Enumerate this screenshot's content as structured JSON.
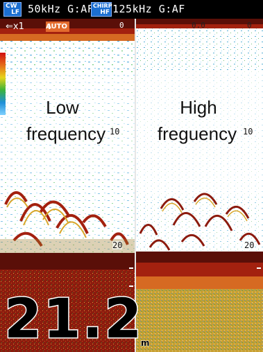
{
  "top_bar": {
    "left": {
      "badge_top": "CW",
      "badge_bottom": "LF",
      "text": "50kHz G:AF"
    },
    "right": {
      "badge_top": "CHIRP",
      "badge_bottom": "HF",
      "text": "125kHz G:AF"
    }
  },
  "left_pane": {
    "zoom_text": "⇐x1",
    "auto_label": "AUTO",
    "auto_icon": "I",
    "top_marker": "0",
    "label_line1": "Low",
    "label_line2": "frequency",
    "depth_10": "10",
    "depth_20": "20"
  },
  "right_pane": {
    "top_marker": "0.0",
    "top_right_marker": "0",
    "label_line1": "High",
    "label_line2": "freguency",
    "depth_10": "10",
    "depth_20": "20"
  },
  "depth_readout": {
    "value": "21.2",
    "unit": "m"
  },
  "colors": {
    "background": "#ffffff",
    "topbar": "#000000",
    "badge": "#1b6fd1",
    "bottom_dark": "#5a0f08",
    "bottom_red": "#a3210f",
    "auto_badge": "#e36b2d"
  }
}
